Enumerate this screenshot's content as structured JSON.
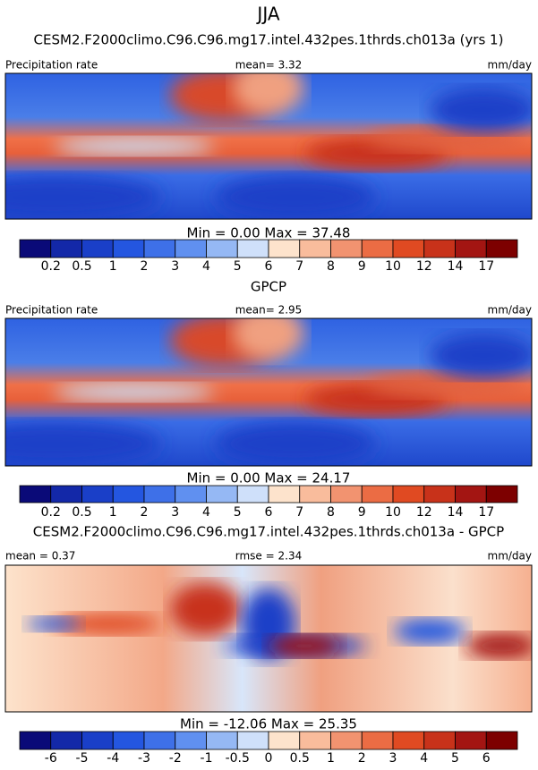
{
  "title": "JJA",
  "panels": [
    {
      "title": "CESM2.F2000climo.C96.C96.mg17.intel.432pes.1thrds.ch013a (yrs 1)",
      "left": "Precipitation rate",
      "center": "mean=   3.32",
      "right": "mm/day",
      "stats": "Min =   0.00 Max =  37.48",
      "colorbar": {
        "colors": [
          "#0a0a78",
          "#1328a8",
          "#1a3fc8",
          "#2456e0",
          "#3e70e8",
          "#6090f0",
          "#95b8f4",
          "#cfe0fa",
          "#fde3cc",
          "#f9bc9c",
          "#f29370",
          "#eb6c44",
          "#e04a22",
          "#c8321a",
          "#a31512",
          "#7d0000"
        ],
        "labels": [
          "0.2",
          "0.5",
          "1",
          "2",
          "3",
          "4",
          "5",
          "6",
          "7",
          "8",
          "9",
          "10",
          "12",
          "14",
          "17"
        ]
      }
    },
    {
      "title": "GPCP",
      "left": "Precipitation rate",
      "center": "mean=   2.95",
      "right": "mm/day",
      "stats": "Min =   0.00 Max =  24.17",
      "colorbar": {
        "colors": [
          "#0a0a78",
          "#1328a8",
          "#1a3fc8",
          "#2456e0",
          "#3e70e8",
          "#6090f0",
          "#95b8f4",
          "#cfe0fa",
          "#fde3cc",
          "#f9bc9c",
          "#f29370",
          "#eb6c44",
          "#e04a22",
          "#c8321a",
          "#a31512",
          "#7d0000"
        ],
        "labels": [
          "0.2",
          "0.5",
          "1",
          "2",
          "3",
          "4",
          "5",
          "6",
          "7",
          "8",
          "9",
          "10",
          "12",
          "14",
          "17"
        ]
      }
    },
    {
      "title": "CESM2.F2000climo.C96.C96.mg17.intel.432pes.1thrds.ch013a - GPCP",
      "left": "mean =   0.37",
      "center": "rmse =   2.34",
      "right": "mm/day",
      "stats": "Min = -12.06 Max =  25.35",
      "colorbar": {
        "colors": [
          "#0a0a78",
          "#1328a8",
          "#1a3fc8",
          "#2456e0",
          "#3e70e8",
          "#6090f0",
          "#95b8f4",
          "#cfe0fa",
          "#fde3cc",
          "#f9bc9c",
          "#f29370",
          "#eb6c44",
          "#e04a22",
          "#c8321a",
          "#a31512",
          "#7d0000"
        ],
        "labels": [
          "-6",
          "-5",
          "-4",
          "-3",
          "-2",
          "-1",
          "-0.5",
          "0",
          "0.5",
          "1",
          "2",
          "3",
          "4",
          "5",
          "6"
        ]
      }
    }
  ]
}
